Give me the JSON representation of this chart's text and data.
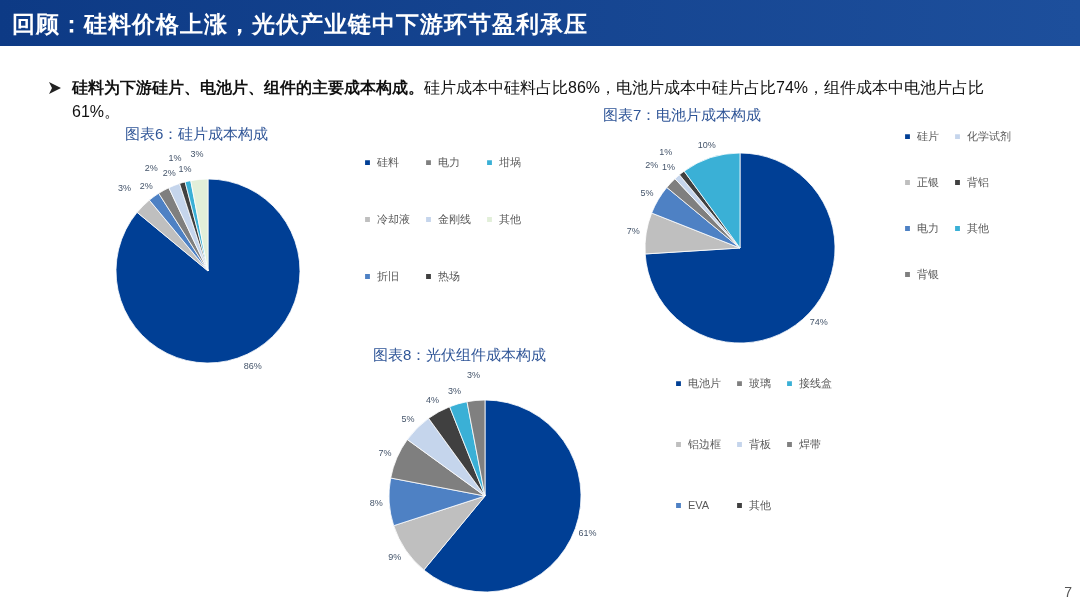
{
  "chart_data": [
    {
      "type": "other",
      "title": "回顾：硅料价格上涨，光伏产业链中下游环节盈利承压",
      "annotations": [
        "硅料为下游硅片、电池片、组件的主要成本构成。",
        "硅片成本中硅料占比86%，电池片成本中硅片占比74%，组件成本中电池片占比61%。",
        "7"
      ]
    },
    {
      "type": "pie",
      "title": "图表6：硅片成本构成",
      "categories": [
        "硅料",
        "冷却液",
        "折旧",
        "电力",
        "金刚线",
        "热场",
        "坩埚",
        "其他"
      ],
      "values": [
        86,
        3,
        2,
        2,
        2,
        1,
        1,
        3
      ],
      "value_labels": [
        "86%",
        "3%",
        "2%",
        "2%",
        "2%",
        "1%",
        "1%",
        "3%"
      ],
      "colors": [
        "#003f95",
        "#bfbfbf",
        "#4e81c4",
        "#7f7f7f",
        "#c5d5ec",
        "#404040",
        "#3ab0d6",
        "#e2efd9"
      ],
      "legend": "right"
    },
    {
      "type": "pie",
      "title": "图表7：电池片成本构成",
      "categories": [
        "硅片",
        "正银",
        "电力",
        "背银",
        "化学试剂",
        "背铝",
        "其他"
      ],
      "values": [
        74,
        7,
        5,
        2,
        1,
        1,
        10
      ],
      "value_labels": [
        "74%",
        "7%",
        "5%",
        "2%",
        "1%",
        "1%",
        "10%"
      ],
      "colors": [
        "#003f95",
        "#bfbfbf",
        "#4e81c4",
        "#7f7f7f",
        "#c5d5ec",
        "#404040",
        "#3ab0d6"
      ],
      "legend": "right"
    },
    {
      "type": "pie",
      "title": "图表8：光伏组件成本构成",
      "categories": [
        "电池片",
        "铝边框",
        "EVA",
        "玻璃",
        "背板",
        "其他",
        "接线盒",
        "焊带"
      ],
      "values": [
        61,
        9,
        8,
        7,
        5,
        4,
        3,
        3
      ],
      "value_labels": [
        "61%",
        "9%",
        "8%",
        "7%",
        "5%",
        "4%",
        "3%",
        "3%"
      ],
      "colors": [
        "#003f95",
        "#bfbfbf",
        "#4e81c4",
        "#7f7f7f",
        "#c5d5ec",
        "#404040",
        "#3ab0d6",
        "#808080"
      ],
      "legend": "right"
    }
  ]
}
